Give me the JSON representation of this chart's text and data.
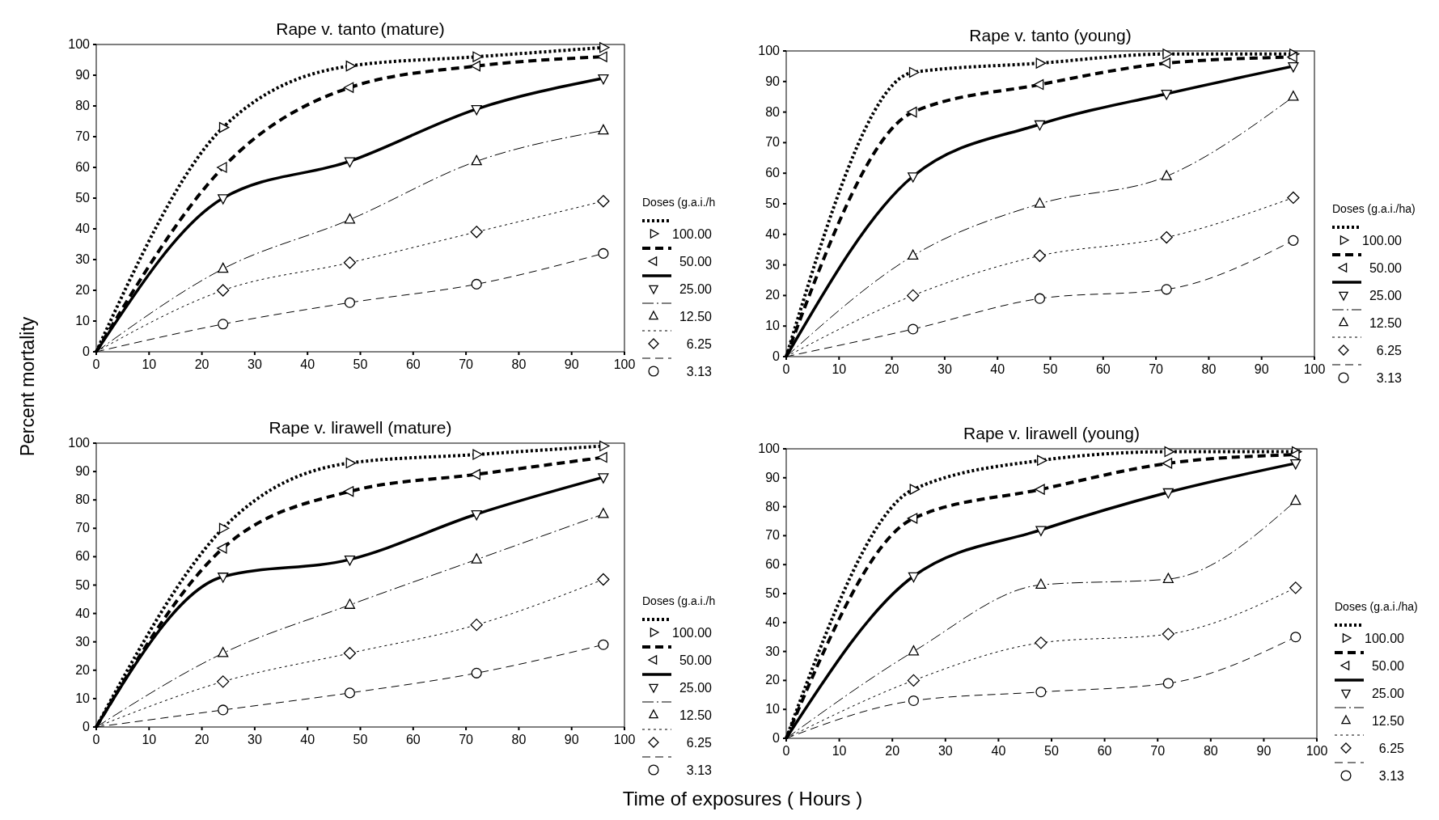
{
  "chart_data": [
    {
      "type": "line",
      "title": "Rape v. tanto (mature)",
      "ylabel": "Percent mortality",
      "legend_title": "Doses (g.a.i./h",
      "legend": "right",
      "grid": false,
      "x": [
        0,
        24,
        48,
        72,
        96
      ],
      "xlim": [
        0,
        100
      ],
      "ylim": [
        0,
        100
      ],
      "xticks": [
        0,
        10,
        20,
        30,
        40,
        50,
        60,
        70,
        80,
        90,
        100
      ],
      "yticks": [
        0,
        10,
        20,
        30,
        40,
        50,
        60,
        70,
        80,
        90,
        100
      ],
      "series": [
        {
          "name": "100.00",
          "color": "#000000",
          "line_style": "dotted",
          "marker": "triangle",
          "values": [
            0,
            73,
            93,
            96,
            99
          ]
        },
        {
          "name": "50.00",
          "color": "#000000",
          "line_style": "dashed",
          "marker": "triangle",
          "values": [
            0,
            60,
            86,
            93,
            96
          ]
        },
        {
          "name": "25.00",
          "color": "#000000",
          "line_style": "solid",
          "marker": "triangle",
          "values": [
            0,
            50,
            62,
            79,
            89
          ]
        },
        {
          "name": "12.50",
          "color": "#000000",
          "line_style": "dashed",
          "marker": "triangle",
          "values": [
            0,
            27,
            43,
            62,
            72
          ]
        },
        {
          "name": "6.25",
          "color": "#000000",
          "line_style": "dotted",
          "marker": "diamond",
          "values": [
            0,
            20,
            29,
            39,
            49
          ]
        },
        {
          "name": "3.13",
          "color": "#000000",
          "line_style": "dashed",
          "marker": "circle",
          "values": [
            0,
            9,
            16,
            22,
            32
          ]
        }
      ]
    },
    {
      "type": "line",
      "title": "Rape v. tanto (young)",
      "legend_title": "Doses (g.a.i./ha)",
      "legend": "right",
      "grid": false,
      "x": [
        0,
        24,
        48,
        72,
        96
      ],
      "xlim": [
        0,
        100
      ],
      "ylim": [
        0,
        100
      ],
      "xticks": [
        0,
        10,
        20,
        30,
        40,
        50,
        60,
        70,
        80,
        90,
        100
      ],
      "yticks": [
        0,
        10,
        20,
        30,
        40,
        50,
        60,
        70,
        80,
        90,
        100
      ],
      "series": [
        {
          "name": "100.00",
          "color": "#000000",
          "line_style": "dotted",
          "marker": "triangle",
          "values": [
            0,
            93,
            96,
            99,
            99
          ]
        },
        {
          "name": "50.00",
          "color": "#000000",
          "line_style": "dashed",
          "marker": "triangle",
          "values": [
            0,
            80,
            89,
            96,
            98
          ]
        },
        {
          "name": "25.00",
          "color": "#000000",
          "line_style": "solid",
          "marker": "triangle",
          "values": [
            0,
            59,
            76,
            86,
            95
          ]
        },
        {
          "name": "12.50",
          "color": "#000000",
          "line_style": "dashed",
          "marker": "triangle",
          "values": [
            0,
            33,
            50,
            59,
            85
          ]
        },
        {
          "name": "6.25",
          "color": "#000000",
          "line_style": "dotted",
          "marker": "diamond",
          "values": [
            0,
            20,
            33,
            39,
            52
          ]
        },
        {
          "name": "3.13",
          "color": "#000000",
          "line_style": "dashed",
          "marker": "circle",
          "values": [
            0,
            9,
            19,
            22,
            38
          ]
        }
      ]
    },
    {
      "type": "line",
      "title": "Rape v. lirawell (mature)",
      "xlabel": "Time of exposures ( Hours )",
      "legend_title": "Doses (g.a.i./h",
      "legend": "right",
      "grid": false,
      "x": [
        0,
        24,
        48,
        72,
        96
      ],
      "xlim": [
        0,
        100
      ],
      "ylim": [
        0,
        100
      ],
      "xticks": [
        0,
        10,
        20,
        30,
        40,
        50,
        60,
        70,
        80,
        90,
        100
      ],
      "yticks": [
        0,
        10,
        20,
        30,
        40,
        50,
        60,
        70,
        80,
        90,
        100
      ],
      "series": [
        {
          "name": "100.00",
          "color": "#000000",
          "line_style": "dotted",
          "marker": "triangle",
          "values": [
            0,
            70,
            93,
            96,
            99
          ]
        },
        {
          "name": "50.00",
          "color": "#000000",
          "line_style": "dashed",
          "marker": "triangle",
          "values": [
            0,
            63,
            83,
            89,
            95
          ]
        },
        {
          "name": "25.00",
          "color": "#000000",
          "line_style": "solid",
          "marker": "triangle",
          "values": [
            0,
            53,
            59,
            75,
            88
          ]
        },
        {
          "name": "12.50",
          "color": "#000000",
          "line_style": "dashed",
          "marker": "triangle",
          "values": [
            0,
            26,
            43,
            59,
            75
          ]
        },
        {
          "name": "6.25",
          "color": "#000000",
          "line_style": "dotted",
          "marker": "diamond",
          "values": [
            0,
            16,
            26,
            36,
            52
          ]
        },
        {
          "name": "3.13",
          "color": "#000000",
          "line_style": "dashed",
          "marker": "circle",
          "values": [
            0,
            6,
            12,
            19,
            29
          ]
        }
      ]
    },
    {
      "type": "line",
      "title": "Rape v. lirawell (young)",
      "legend_title": "Doses (g.a.i./ha)",
      "legend": "right",
      "grid": false,
      "x": [
        0,
        24,
        48,
        72,
        96
      ],
      "xlim": [
        0,
        100
      ],
      "ylim": [
        0,
        100
      ],
      "xticks": [
        0,
        10,
        20,
        30,
        40,
        50,
        60,
        70,
        80,
        90,
        100
      ],
      "yticks": [
        0,
        10,
        20,
        30,
        40,
        50,
        60,
        70,
        80,
        90,
        100
      ],
      "series": [
        {
          "name": "100.00",
          "color": "#000000",
          "line_style": "dotted",
          "marker": "triangle",
          "values": [
            0,
            86,
            96,
            99,
            99
          ]
        },
        {
          "name": "50.00",
          "color": "#000000",
          "line_style": "dashed",
          "marker": "triangle",
          "values": [
            0,
            76,
            86,
            95,
            98
          ]
        },
        {
          "name": "25.00",
          "color": "#000000",
          "line_style": "solid",
          "marker": "triangle",
          "values": [
            0,
            56,
            72,
            85,
            95
          ]
        },
        {
          "name": "12.50",
          "color": "#000000",
          "line_style": "dashed",
          "marker": "triangle",
          "values": [
            0,
            30,
            53,
            55,
            82
          ]
        },
        {
          "name": "6.25",
          "color": "#000000",
          "line_style": "dotted",
          "marker": "diamond",
          "values": [
            0,
            20,
            33,
            36,
            52
          ]
        },
        {
          "name": "3.13",
          "color": "#000000",
          "line_style": "dashed",
          "marker": "circle",
          "values": [
            0,
            13,
            16,
            19,
            35
          ]
        }
      ]
    }
  ]
}
